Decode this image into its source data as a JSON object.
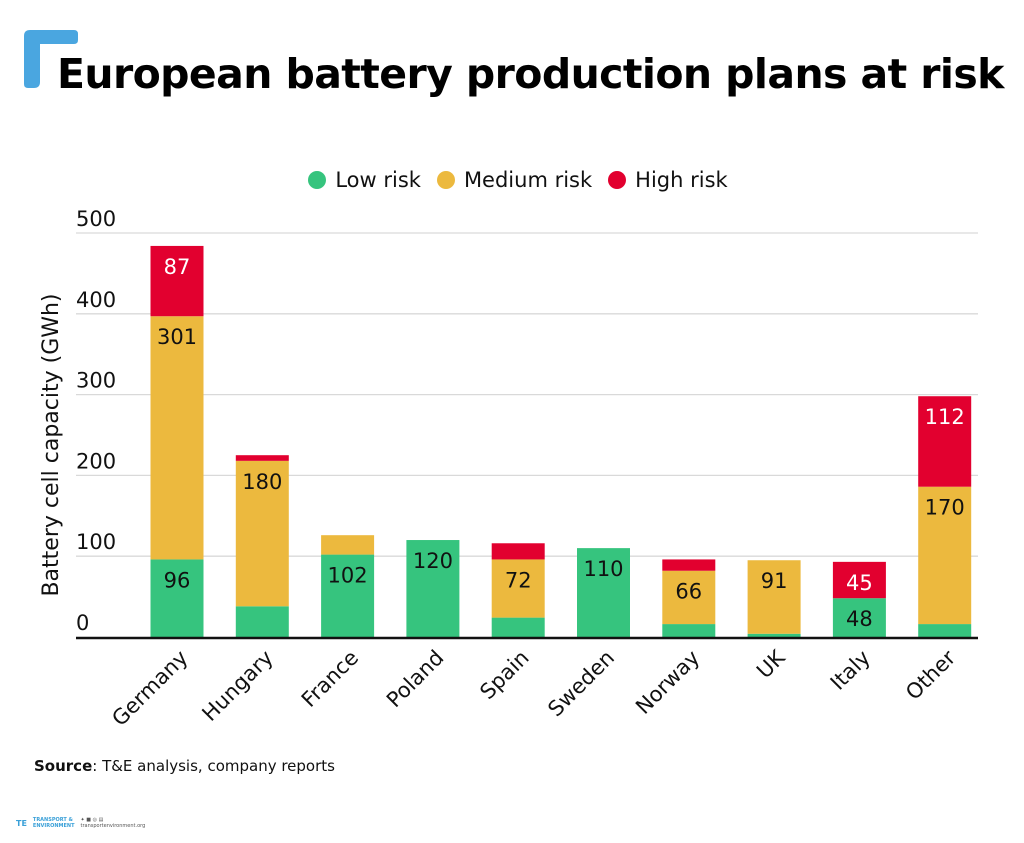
{
  "header": {
    "title": "European battery production plans at risk"
  },
  "colors": {
    "low": "#36c47e",
    "medium": "#ecb93e",
    "high": "#e2002f",
    "brand": "#4aa6e0",
    "grid": "#d9d9d9",
    "axis": "#111111"
  },
  "legend": {
    "items": [
      {
        "label": "Low risk",
        "key": "low"
      },
      {
        "label": "Medium risk",
        "key": "medium"
      },
      {
        "label": "High risk",
        "key": "high"
      }
    ]
  },
  "chart_data": {
    "type": "bar",
    "stacked": true,
    "title": "European battery production plans at risk",
    "xlabel": "",
    "ylabel": "Battery cell capacity (GWh)",
    "ylim": [
      0,
      500
    ],
    "yticks": [
      0,
      100,
      200,
      300,
      400,
      500
    ],
    "grid": true,
    "legend_position": "top-center",
    "categories": [
      "Germany",
      "Hungary",
      "France",
      "Poland",
      "Spain",
      "Sweden",
      "Norway",
      "UK",
      "Italy",
      "Other"
    ],
    "series": [
      {
        "name": "Low risk",
        "key": "low",
        "values": [
          96,
          38,
          102,
          120,
          24,
          110,
          16,
          4,
          48,
          16
        ]
      },
      {
        "name": "Medium risk",
        "key": "medium",
        "values": [
          301,
          180,
          24,
          0,
          72,
          0,
          66,
          91,
          0,
          170
        ]
      },
      {
        "name": "High risk",
        "key": "high",
        "values": [
          87,
          7,
          0,
          0,
          20,
          0,
          14,
          0,
          45,
          112
        ]
      }
    ],
    "data_labels": [
      {
        "category": "Germany",
        "series": "low",
        "text": "96"
      },
      {
        "category": "Germany",
        "series": "medium",
        "text": "301"
      },
      {
        "category": "Germany",
        "series": "high",
        "text": "87"
      },
      {
        "category": "Hungary",
        "series": "medium",
        "text": "180"
      },
      {
        "category": "France",
        "series": "low",
        "text": "102"
      },
      {
        "category": "Poland",
        "series": "low",
        "text": "120"
      },
      {
        "category": "Spain",
        "series": "medium",
        "text": "72"
      },
      {
        "category": "Sweden",
        "series": "low",
        "text": "110"
      },
      {
        "category": "Norway",
        "series": "medium",
        "text": "66"
      },
      {
        "category": "UK",
        "series": "medium",
        "text": "91"
      },
      {
        "category": "Italy",
        "series": "low",
        "text": "48"
      },
      {
        "category": "Italy",
        "series": "high",
        "text": "45"
      },
      {
        "category": "Other",
        "series": "medium",
        "text": "170"
      },
      {
        "category": "Other",
        "series": "high",
        "text": "112"
      }
    ]
  },
  "source": {
    "label": "Source",
    "text": ": T&E analysis, company reports"
  },
  "footer": {
    "org_line1": "TRANSPORT &",
    "org_line2": "ENVIRONMENT",
    "social": "transportenvironment.org"
  }
}
